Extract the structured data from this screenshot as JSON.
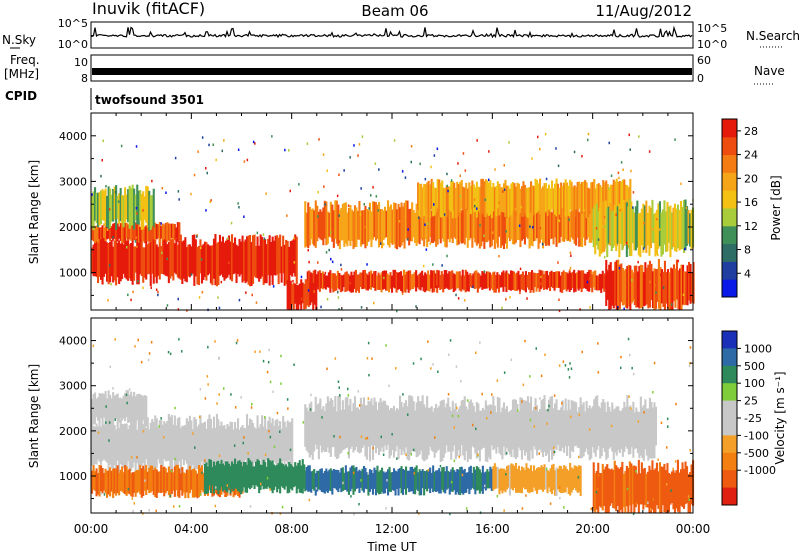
{
  "header": {
    "station": "Inuvik (fitACF)",
    "beam": "Beam 06",
    "date": "11/Aug/2012"
  },
  "strips": {
    "nsky_label": "N.Sky",
    "nsky_ticks": [
      "10^5",
      "10^0"
    ],
    "nsearch_label": "N.Search",
    "freq_label_top": "Freq.",
    "freq_label_unit": "[MHz]",
    "freq_ticks": [
      "10",
      "8"
    ],
    "nave_label": "Nave",
    "nave_ticks": [
      "60",
      "0"
    ],
    "cpid_label": "CPID",
    "cpid_value": "twofsound 3501"
  },
  "chart_data": [
    {
      "type": "heatmap",
      "quantity": "Power",
      "ylabel": "Slant Range [km]",
      "xlabel": "Time UT",
      "x_ticks": [
        "00:00",
        "04:00",
        "08:00",
        "12:00",
        "16:00",
        "20:00",
        "00:00"
      ],
      "y_ticks": [
        1000,
        2000,
        3000,
        4000
      ],
      "ylim": [
        180,
        4500
      ],
      "xlim_hours": [
        0,
        24
      ],
      "colorbar": {
        "label": "Power [dB]",
        "ticks": [
          "4",
          "8",
          "12",
          "16",
          "20",
          "24",
          "28"
        ],
        "range": [
          0,
          30
        ],
        "colors": [
          "#0a18e8",
          "#1f3ea0",
          "#2d6d66",
          "#3f8f58",
          "#a9cc3a",
          "#f2c114",
          "#f7a518",
          "#f57c12",
          "#ef4d10",
          "#e61a0a"
        ]
      },
      "bands": [
        {
          "t": [
            0,
            8.2
          ],
          "r": [
            850,
            1700
          ],
          "level": 28
        },
        {
          "t": [
            0,
            3.5
          ],
          "r": [
            1700,
            2050
          ],
          "level": 26
        },
        {
          "t": [
            0,
            2.5
          ],
          "r": [
            2050,
            2800
          ],
          "level": 14
        },
        {
          "t": [
            8.6,
            21
          ],
          "r": [
            620,
            1000
          ],
          "level": 27
        },
        {
          "t": [
            8.5,
            21.5
          ],
          "r": [
            1650,
            2450
          ],
          "level": 22
        },
        {
          "t": [
            13,
            21.5
          ],
          "r": [
            2300,
            2950
          ],
          "level": 19
        },
        {
          "t": [
            20.5,
            24
          ],
          "r": [
            250,
            1150
          ],
          "level": 26
        },
        {
          "t": [
            20,
            24
          ],
          "r": [
            1500,
            2450
          ],
          "level": 15
        },
        {
          "t": [
            7.8,
            9
          ],
          "r": [
            250,
            800
          ],
          "level": 28
        }
      ]
    },
    {
      "type": "heatmap",
      "quantity": "Velocity",
      "ylabel": "Slant Range [km]",
      "xlabel": "Time UT",
      "x_ticks": [
        "00:00",
        "04:00",
        "08:00",
        "12:00",
        "16:00",
        "20:00",
        "00:00"
      ],
      "y_ticks": [
        1000,
        2000,
        3000,
        4000
      ],
      "ylim": [
        180,
        4500
      ],
      "xlim_hours": [
        0,
        24
      ],
      "colorbar": {
        "label": "Velocity [m s⁻¹]",
        "ticks": [
          "1000",
          "500",
          "100",
          "25",
          "-25",
          "-100",
          "-500",
          "-1000"
        ],
        "colors": [
          "#1a30b8",
          "#2d6aa6",
          "#2e8a5a",
          "#7fcd3a",
          "#c8c8c8",
          "#c8c8c8",
          "#f4a028",
          "#f27f10",
          "#ee5a10",
          "#e02010"
        ]
      },
      "bands": [
        {
          "t": [
            0,
            8
          ],
          "r": [
            1200,
            2200
          ],
          "v": 0
        },
        {
          "t": [
            0,
            2.2
          ],
          "r": [
            2200,
            2800
          ],
          "v": 0
        },
        {
          "t": [
            0,
            6
          ],
          "r": [
            600,
            1150
          ],
          "v": -300
        },
        {
          "t": [
            4.5,
            8.5
          ],
          "r": [
            700,
            1300
          ],
          "v": 150
        },
        {
          "t": [
            8.5,
            16
          ],
          "r": [
            650,
            1150
          ],
          "v": 300
        },
        {
          "t": [
            8.5,
            22.5
          ],
          "r": [
            1500,
            2600
          ],
          "v": 0
        },
        {
          "t": [
            16,
            19.5
          ],
          "r": [
            650,
            1200
          ],
          "v": -60
        },
        {
          "t": [
            20,
            24
          ],
          "r": [
            250,
            1200
          ],
          "v": -450
        }
      ]
    }
  ]
}
